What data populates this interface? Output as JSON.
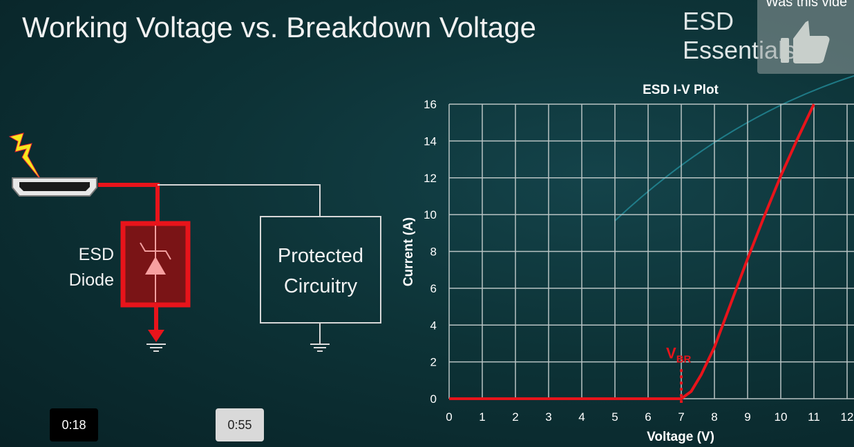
{
  "slide": {
    "title": "Working Voltage vs. Breakdown Voltage",
    "brand": "ESD Essentials",
    "diode_label_1": "ESD",
    "diode_label_2": "Diode",
    "protected_label_1": "Protected",
    "protected_label_2": "Circuitry"
  },
  "player": {
    "feedback_prompt": "Was this vide",
    "feedback_icon": "thumbs-up-icon",
    "time_current": "0:18",
    "time_hover": "0:55"
  },
  "colors": {
    "accent": "#e8141b",
    "grid": "#b9c4c4",
    "text": "#f2f2f2"
  },
  "chart_data": {
    "type": "line",
    "title": "ESD I-V Plot",
    "xlabel": "Voltage (V)",
    "ylabel": "Current (A)",
    "xlim": [
      0,
      12
    ],
    "ylim": [
      0,
      16
    ],
    "xticks": [
      "0",
      "1",
      "2",
      "3",
      "4",
      "5",
      "6",
      "7",
      "8",
      "9",
      "10",
      "11",
      "12"
    ],
    "yticks": [
      "0",
      "2",
      "4",
      "6",
      "8",
      "10",
      "12",
      "14",
      "16"
    ],
    "grid": true,
    "annotation": {
      "text": "V",
      "subscript": "BR",
      "x": 7
    },
    "series": [
      {
        "x": [
          0,
          7,
          7.3,
          7.6,
          8,
          8.5,
          9,
          9.5,
          10,
          10.5,
          11
        ],
        "y": [
          0,
          0,
          0.4,
          1.3,
          2.8,
          5.2,
          7.6,
          9.9,
          12.1,
          14.1,
          16
        ]
      }
    ]
  }
}
